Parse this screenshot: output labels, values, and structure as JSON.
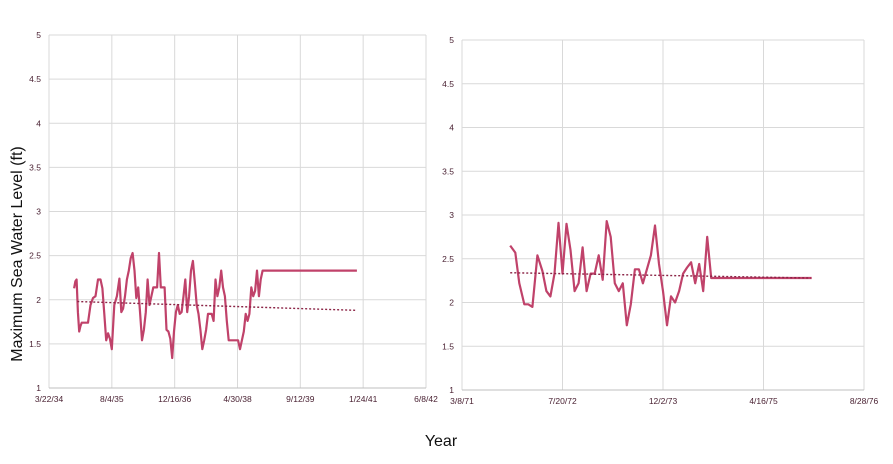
{
  "colors": {
    "series": "#c0426a",
    "trend": "#8b2446",
    "grid": "#d9d9d9",
    "tick_text": "#4a2233"
  },
  "shared": {
    "ylabel": "Maximum Sea Water Level (ft)",
    "xlabel": "Year"
  },
  "chart_data": [
    {
      "type": "line",
      "yticks": [
        "1",
        "1.5",
        "2",
        "2.5",
        "3",
        "3.5",
        "4",
        "4.5",
        "5"
      ],
      "ylim": [
        1,
        5
      ],
      "xticks": [
        "3/22/34",
        "8/4/35",
        "12/16/36",
        "4/30/38",
        "9/12/39",
        "1/24/41",
        "6/8/42"
      ],
      "xlim_tick_index": [
        0,
        6
      ],
      "grid": true,
      "series": [
        {
          "x": [
            0.4,
            0.42,
            0.44,
            0.46,
            0.48,
            0.5,
            0.52,
            0.55,
            0.58,
            0.62,
            0.66,
            0.7,
            0.74,
            0.78,
            0.82,
            0.85,
            0.88,
            0.91,
            0.94,
            0.97,
            1.0,
            1.04,
            1.08,
            1.12,
            1.15,
            1.18,
            1.21,
            1.24,
            1.27,
            1.3,
            1.33,
            1.36,
            1.39,
            1.42,
            1.45,
            1.48,
            1.51,
            1.54,
            1.57,
            1.6,
            1.63,
            1.66,
            1.69,
            1.72,
            1.75,
            1.78,
            1.81,
            1.84,
            1.87,
            1.9,
            1.93,
            1.96,
            1.99,
            2.02,
            2.05,
            2.08,
            2.11,
            2.14,
            2.17,
            2.2,
            2.23,
            2.26,
            2.29,
            2.32,
            2.35,
            2.38,
            2.41,
            2.44,
            2.47,
            2.5,
            2.53,
            2.56,
            2.59,
            2.62,
            2.65,
            2.68,
            2.71,
            2.74,
            2.77,
            2.8,
            2.83,
            2.86,
            2.89,
            2.92,
            2.95,
            2.98,
            3.01,
            3.04,
            3.07,
            3.1,
            3.13,
            3.16,
            3.19,
            3.22,
            3.25,
            3.28,
            3.31,
            3.34,
            3.37,
            3.4,
            3.43,
            3.46,
            3.49,
            3.52,
            3.55,
            3.58,
            3.61,
            3.64,
            3.67,
            3.7,
            3.73,
            3.76,
            3.79,
            3.82,
            3.85,
            3.88,
            3.91,
            3.94,
            3.97,
            4.0,
            4.03,
            4.06,
            4.09,
            4.12,
            4.15,
            4.18,
            4.21,
            4.24,
            4.27,
            4.3,
            4.33,
            4.36,
            4.39,
            4.42,
            4.45,
            4.48,
            4.51,
            4.54,
            4.57,
            4.6,
            4.63,
            4.66,
            4.69,
            4.72,
            4.75,
            4.78,
            4.81,
            4.84,
            4.87,
            4.9
          ],
          "y": [
            2.13,
            2.21,
            2.23,
            1.86,
            1.64,
            1.7,
            1.74,
            1.74,
            1.74,
            1.74,
            1.94,
            2.02,
            2.04,
            2.23,
            2.23,
            2.13,
            1.84,
            1.54,
            1.62,
            1.56,
            1.44,
            1.94,
            2.04,
            2.24,
            1.86,
            1.9,
            2.04,
            2.23,
            2.33,
            2.47,
            2.53,
            2.33,
            2.02,
            2.14,
            1.85,
            1.54,
            1.66,
            1.86,
            2.23,
            1.94,
            2.04,
            2.14,
            2.14,
            2.14,
            2.53,
            2.14,
            2.14,
            2.14,
            1.66,
            1.64,
            1.56,
            1.34,
            1.64,
            1.86,
            1.94,
            1.84,
            1.86,
            2.04,
            2.23,
            1.86,
            2.04,
            2.33,
            2.44,
            2.2,
            1.94,
            1.84,
            1.66,
            1.44,
            1.54,
            1.66,
            1.84,
            1.84,
            1.84,
            1.76,
            2.23,
            2.04,
            2.14,
            2.33,
            2.14,
            2.04,
            1.76,
            1.54,
            1.54,
            1.54,
            1.54,
            1.54,
            1.54,
            1.44,
            1.54,
            1.64,
            1.84,
            1.76,
            1.84,
            2.14,
            2.04,
            2.1,
            2.33,
            2.04,
            2.23,
            2.33,
            2.33,
            2.33,
            2.33,
            2.33,
            2.33,
            2.33,
            2.33,
            2.33,
            2.33,
            2.33,
            2.33,
            2.33,
            2.33,
            2.33,
            2.33,
            2.33,
            2.33,
            2.33,
            2.33,
            2.33,
            2.33,
            2.33,
            2.33,
            2.33,
            2.33,
            2.33,
            2.33,
            2.33,
            2.33,
            2.33,
            2.33,
            2.33,
            2.33,
            2.33,
            2.33,
            2.33,
            2.33,
            2.33,
            2.33,
            2.33,
            2.33,
            2.33,
            2.33,
            2.33,
            2.33,
            2.33,
            2.33,
            2.33,
            2.33,
            2.33
          ]
        }
      ],
      "trend": {
        "x": [
          0.45,
          4.9
        ],
        "y": [
          1.98,
          1.88
        ]
      }
    },
    {
      "type": "line",
      "yticks": [
        "1",
        "1.5",
        "2",
        "2.5",
        "3",
        "3.5",
        "4",
        "4.5",
        "5"
      ],
      "ylim": [
        1,
        5
      ],
      "xticks": [
        "3/8/71",
        "7/20/72",
        "12/2/73",
        "4/16/75",
        "8/28/76"
      ],
      "xlim_tick_index": [
        0,
        4
      ],
      "grid": true,
      "series": [
        {
          "x": [
            0.48,
            0.53,
            0.57,
            0.62,
            0.66,
            0.7,
            0.75,
            0.8,
            0.84,
            0.88,
            0.92,
            0.96,
            1.0,
            1.04,
            1.08,
            1.12,
            1.16,
            1.2,
            1.24,
            1.28,
            1.32,
            1.36,
            1.4,
            1.44,
            1.48,
            1.52,
            1.56,
            1.6,
            1.64,
            1.68,
            1.72,
            1.76,
            1.8,
            1.84,
            1.88,
            1.92,
            1.96,
            2.0,
            2.04,
            2.08,
            2.12,
            2.16,
            2.2,
            2.24,
            2.28,
            2.32,
            2.36,
            2.4,
            2.44,
            2.48,
            2.52,
            2.56,
            2.6,
            2.64,
            2.68,
            2.72,
            2.76,
            2.8,
            2.84,
            2.88,
            2.92,
            2.96,
            3.0,
            3.04,
            3.08,
            3.12,
            3.16,
            3.2,
            3.24,
            3.28,
            3.32,
            3.36,
            3.4,
            3.44,
            3.48
          ],
          "y": [
            2.65,
            2.57,
            2.22,
            1.98,
            1.98,
            1.95,
            2.54,
            2.36,
            2.13,
            2.07,
            2.33,
            2.91,
            2.33,
            2.9,
            2.6,
            2.13,
            2.22,
            2.63,
            2.13,
            2.33,
            2.33,
            2.54,
            2.26,
            2.93,
            2.75,
            2.22,
            2.13,
            2.22,
            1.74,
            1.98,
            2.38,
            2.38,
            2.22,
            2.38,
            2.54,
            2.88,
            2.44,
            2.13,
            1.74,
            2.07,
            2.0,
            2.13,
            2.33,
            2.4,
            2.46,
            2.22,
            2.44,
            2.13,
            2.75,
            2.28,
            2.28,
            2.28,
            2.28,
            2.28,
            2.28,
            2.28,
            2.28,
            2.28,
            2.28,
            2.28,
            2.28,
            2.28,
            2.28,
            2.28,
            2.28,
            2.28,
            2.28,
            2.28,
            2.28,
            2.28,
            2.28,
            2.28,
            2.28,
            2.28,
            2.28
          ]
        }
      ],
      "trend": {
        "x": [
          0.48,
          3.47
        ],
        "y": [
          2.34,
          2.28
        ]
      }
    }
  ]
}
